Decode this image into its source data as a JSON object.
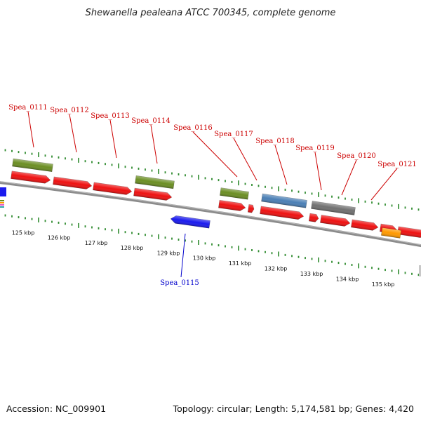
{
  "title": "Shewanella pealeana ATCC 700345, complete genome",
  "footer": {
    "accession": "Accession: NC_009901",
    "summary": "Topology: circular; Length: 5,174,581 bp; Genes: 4,420"
  },
  "colors": {
    "label_top": "#cc0000",
    "label_bottom": "#0000cc",
    "backbone": "#8c8c8c",
    "tick": "#2e8b2e",
    "red_gene": "#ee1111",
    "olive_gene": "#6b8e23",
    "steel_gene": "#4a7fb5",
    "gray_gene": "#707070",
    "blue_gene": "#1a1aee",
    "orange_gene": "#ff9900"
  },
  "labels_top": [
    "Spea_0111",
    "Spea_0112",
    "Spea_0113",
    "Spea_0114",
    "Spea_0116",
    "Spea_0117",
    "Spea_0118",
    "Spea_0119",
    "Spea_0120",
    "Spea_0121"
  ],
  "labels_bottom": [
    "Spea_0115"
  ],
  "kbp_labels": [
    "125 kbp",
    "126 kbp",
    "127 kbp",
    "128 kbp",
    "129 kbp",
    "130 kbp",
    "131 kbp",
    "132 kbp",
    "133 kbp",
    "134 kbp",
    "135 kbp"
  ]
}
